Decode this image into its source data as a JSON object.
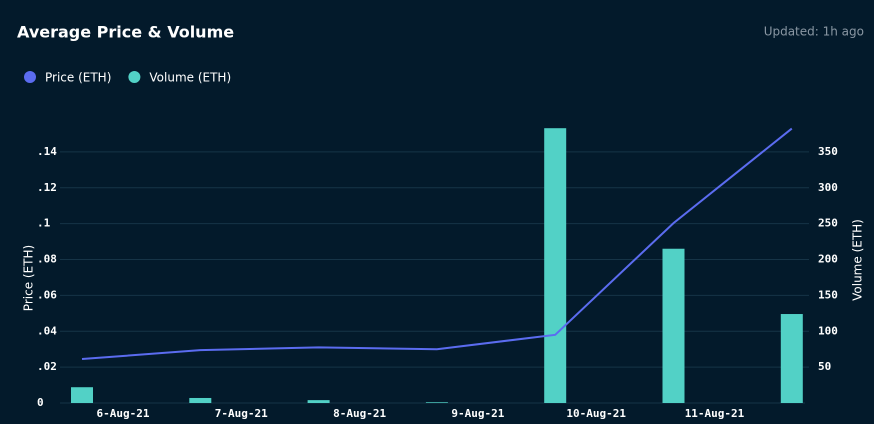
{
  "chart_data": {
    "type": "bar-line",
    "title": "Average Price & Volume",
    "subtitle": "Updated: 1h ago",
    "ylabel": "Price (ETH)",
    "y2label": "Volume (ETH)",
    "categories": [
      "6-Aug-21",
      "7-Aug-21",
      "8-Aug-21",
      "9-Aug-21",
      "10-Aug-21",
      "11-Aug-21",
      null
    ],
    "series": [
      {
        "name": "Price (ETH)",
        "type": "line",
        "color": "#5b6cf0",
        "axis": "y",
        "values": [
          0.0245,
          0.0295,
          0.031,
          0.03,
          0.038,
          0.1003,
          0.153
        ]
      },
      {
        "name": "Volume (ETH)",
        "type": "bar",
        "color": "#52d1c6",
        "axis": "y2",
        "values": [
          22,
          7,
          4,
          1,
          383,
          215,
          124
        ]
      }
    ],
    "ylim": [
      0,
      0.16
    ],
    "yticks": [
      0,
      {
        "value": 0.02,
        "label": ".02"
      },
      {
        "value": 0.04,
        "label": ".04"
      },
      {
        "value": 0.06,
        "label": ".06"
      },
      {
        "value": 0.08,
        "label": ".08"
      },
      {
        "value": 0.1,
        "label": ".1"
      },
      {
        "value": 0.12,
        "label": ".12"
      },
      {
        "value": 0.14,
        "label": ".14"
      }
    ],
    "y2lim": [
      0,
      400
    ],
    "y2ticks": [
      50,
      100,
      150,
      200,
      250,
      300,
      350
    ],
    "grid": true
  }
}
